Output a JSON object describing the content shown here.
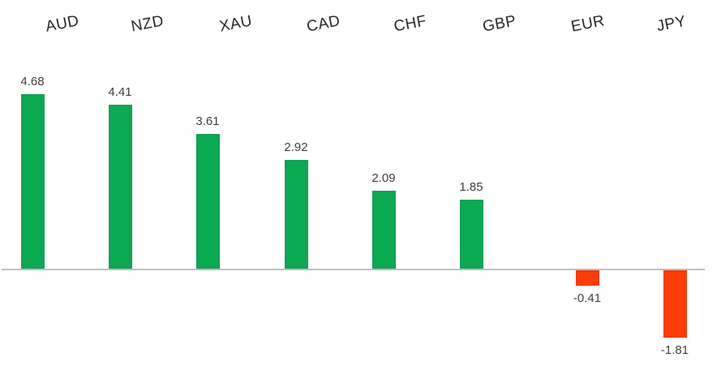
{
  "chart_data": {
    "type": "bar",
    "title": "",
    "xlabel": "",
    "ylabel": "",
    "categories": [
      "AUD",
      "NZD",
      "XAU",
      "CAD",
      "CHF",
      "GBP",
      "EUR",
      "JPY"
    ],
    "values": [
      4.68,
      4.41,
      3.61,
      2.92,
      2.09,
      1.85,
      -0.41,
      -1.81
    ],
    "value_labels": [
      "4.68",
      "4.41",
      "3.61",
      "2.92",
      "2.09",
      "1.85",
      "-0.41",
      "-1.81"
    ],
    "ylim": [
      -2.2,
      5.2
    ],
    "grid": false,
    "legend": false,
    "category_label_position": "top",
    "category_label_rotation_deg": -11,
    "colors": {
      "positive_bar": "#0CAD52",
      "negative_bar": "#FC3D0A",
      "axis_line": "#BFBFBF",
      "category_label": "#262626",
      "value_label": "#3F3F3F",
      "background": "#FFFFFF"
    }
  }
}
